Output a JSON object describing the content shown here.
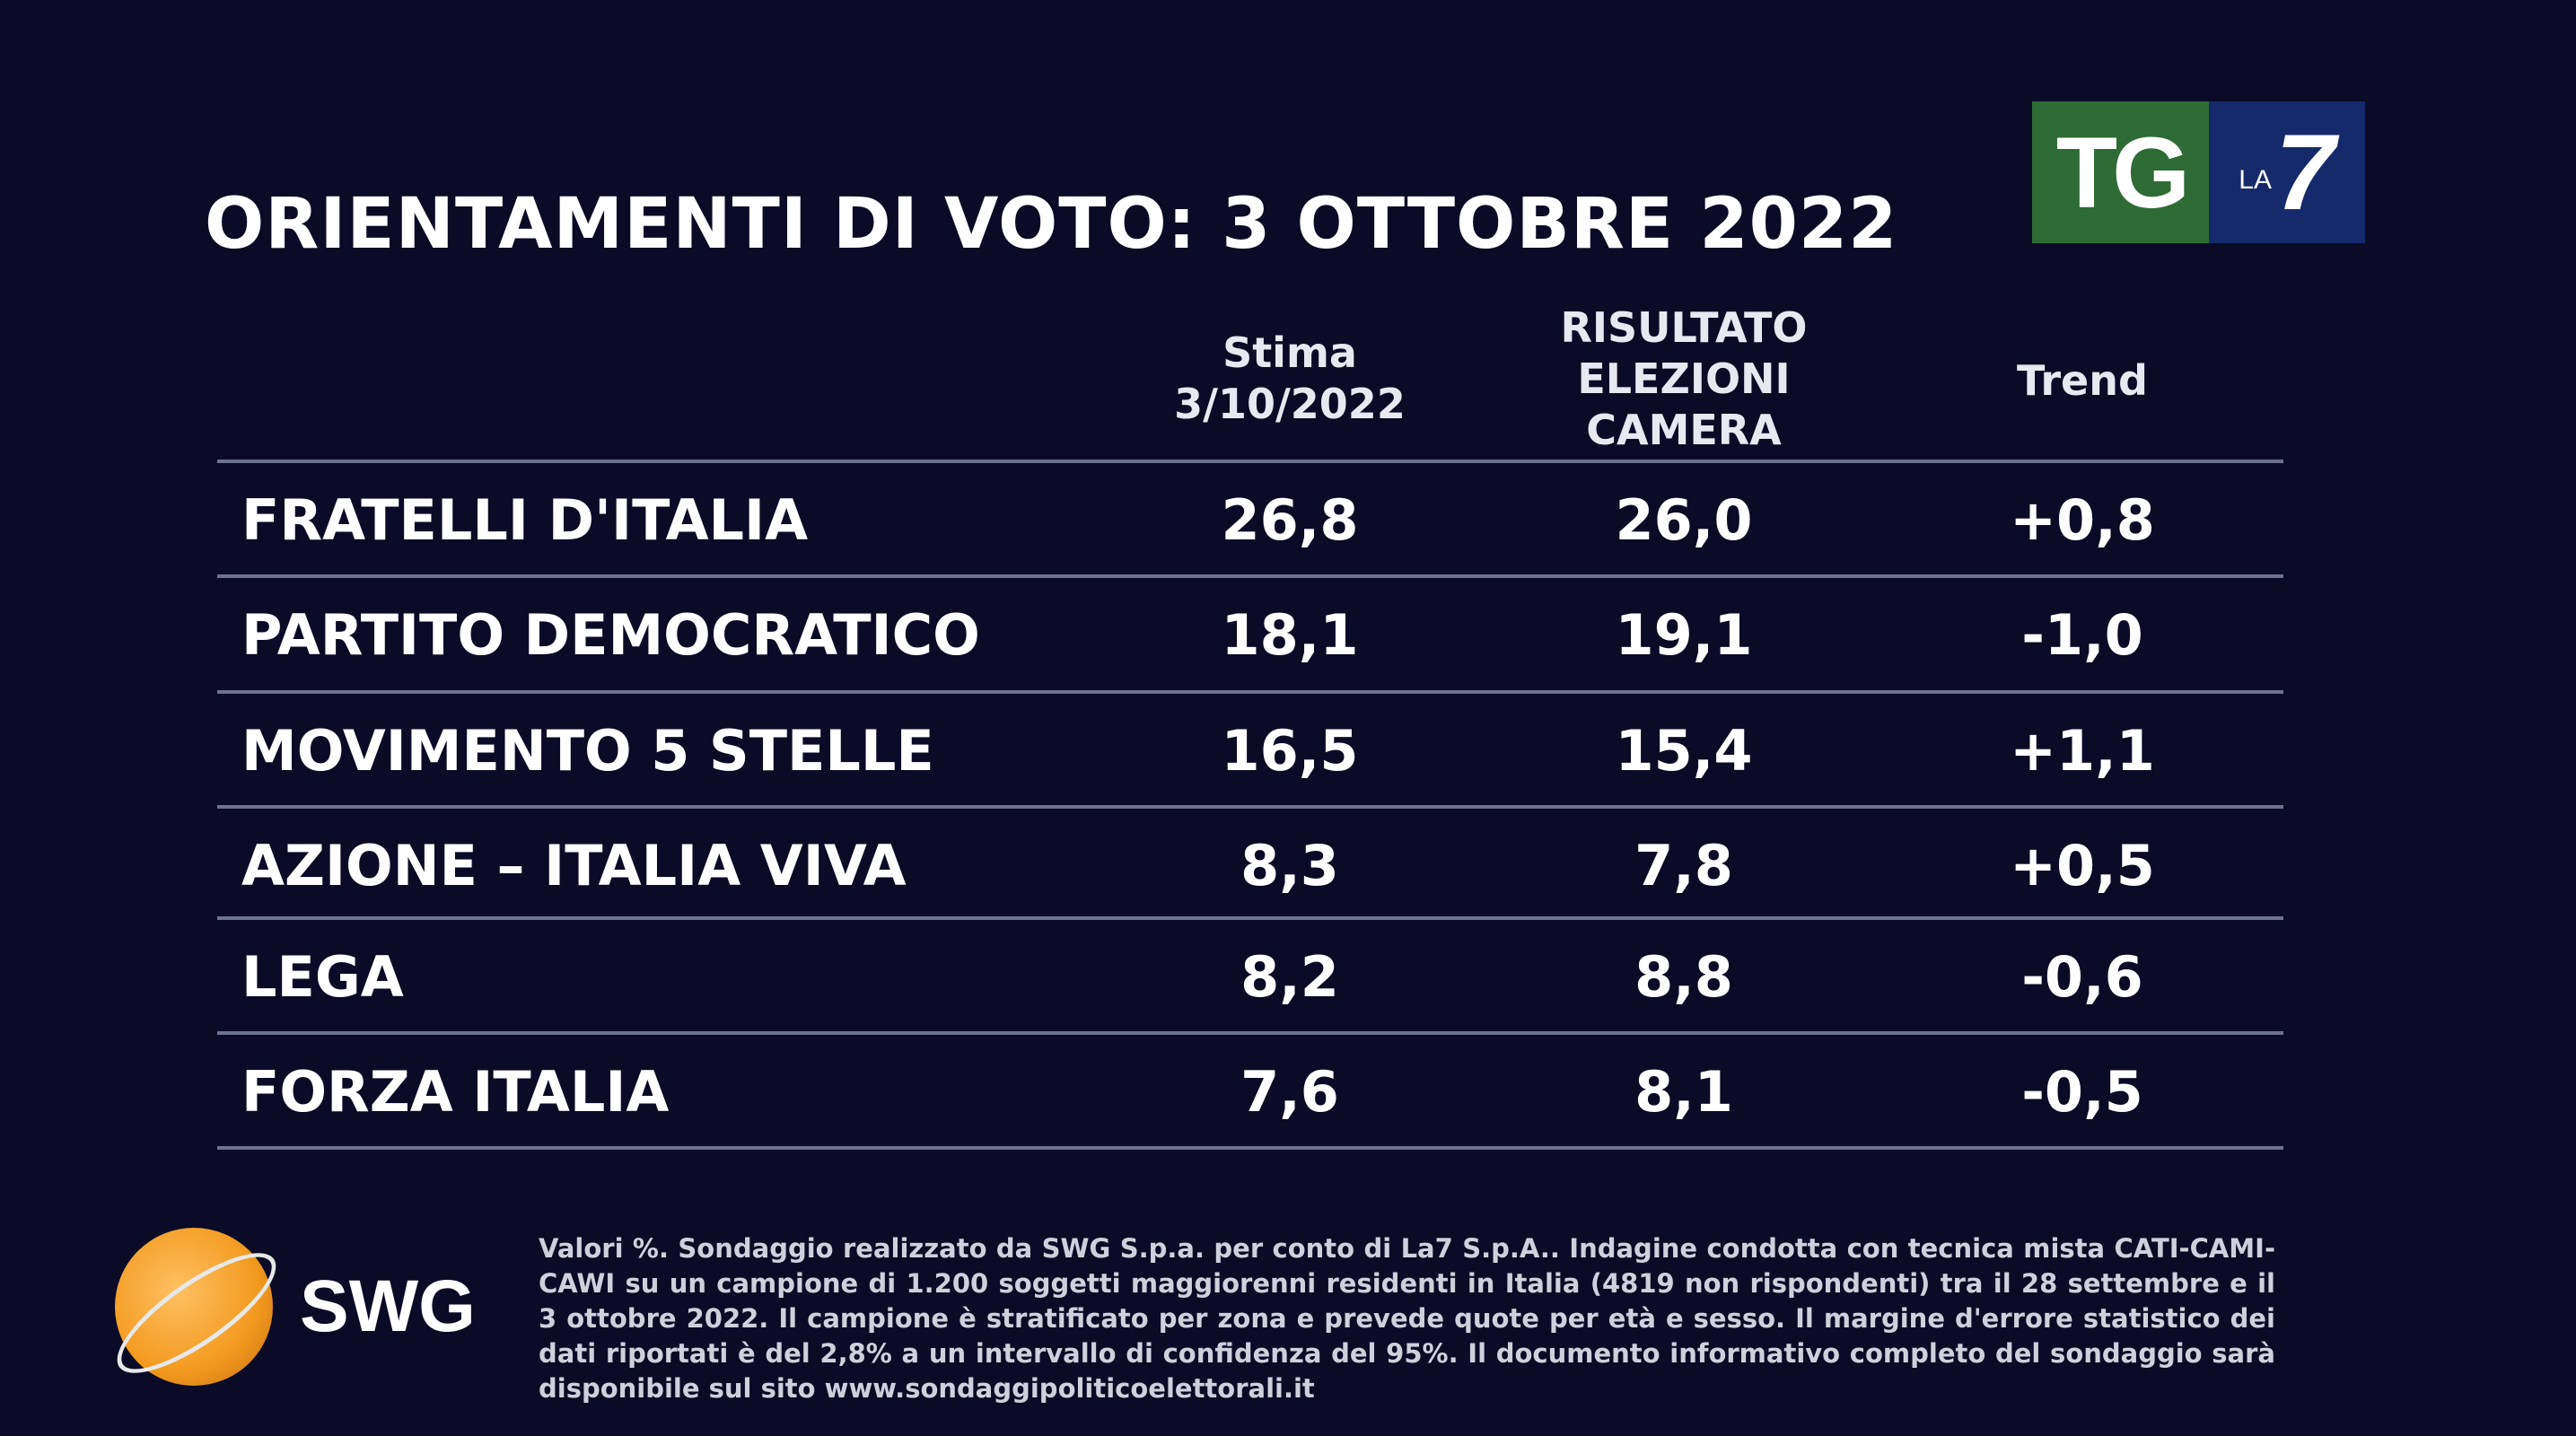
{
  "title": "ORIENTAMENTI DI VOTO: 3 OTTOBRE 2022",
  "logo": {
    "tg": "TG",
    "la": "LA",
    "seven": "7",
    "colors": {
      "green": "#2e6b35",
      "blue": "#142a6a"
    }
  },
  "table": {
    "headers": [
      "Stima\n3/10/2022",
      "RISULTATO\nELEZIONI\nCAMERA",
      "Trend"
    ],
    "header_lines": {
      "stima": [
        "Stima",
        "3/10/2022"
      ],
      "risultato": [
        "RISULTATO",
        "ELEZIONI",
        "CAMERA"
      ],
      "trend": "Trend"
    },
    "rows": [
      {
        "party": "FRATELLI D'ITALIA",
        "stima": "26,8",
        "risultato": "26,0",
        "trend": "+0,8"
      },
      {
        "party": "PARTITO DEMOCRATICO",
        "stima": "18,1",
        "risultato": "19,1",
        "trend": "-1,0"
      },
      {
        "party": "MOVIMENTO 5 STELLE",
        "stima": "16,5",
        "risultato": "15,4",
        "trend": "+1,1"
      },
      {
        "party": "AZIONE – ITALIA VIVA",
        "stima": "8,3",
        "risultato": "7,8",
        "trend": "+0,5"
      },
      {
        "party": "LEGA",
        "stima": "8,2",
        "risultato": "8,8",
        "trend": "-0,6"
      },
      {
        "party": "FORZA ITALIA",
        "stima": "7,6",
        "risultato": "8,1",
        "trend": "-0,5"
      }
    ]
  },
  "swg": {
    "name": "SWG"
  },
  "footnote": "Valori %. Sondaggio realizzato da SWG S.p.a. per conto di La7 S.p.A.. Indagine condotta con tecnica mista CATI-CAMI-CAWI su un campione di 1.200 soggetti maggiorenni residenti in Italia (4819 non rispondenti) tra il 28 settembre e il 3 ottobre 2022. Il campione è stratificato per zona e prevede quote per età e sesso. Il margine d'errore statistico dei dati riportati è del 2,8% a un intervallo di confidenza del 95%. Il documento informativo completo del sondaggio sarà disponibile sul sito www.sondaggipoliticoelettorali.it"
}
